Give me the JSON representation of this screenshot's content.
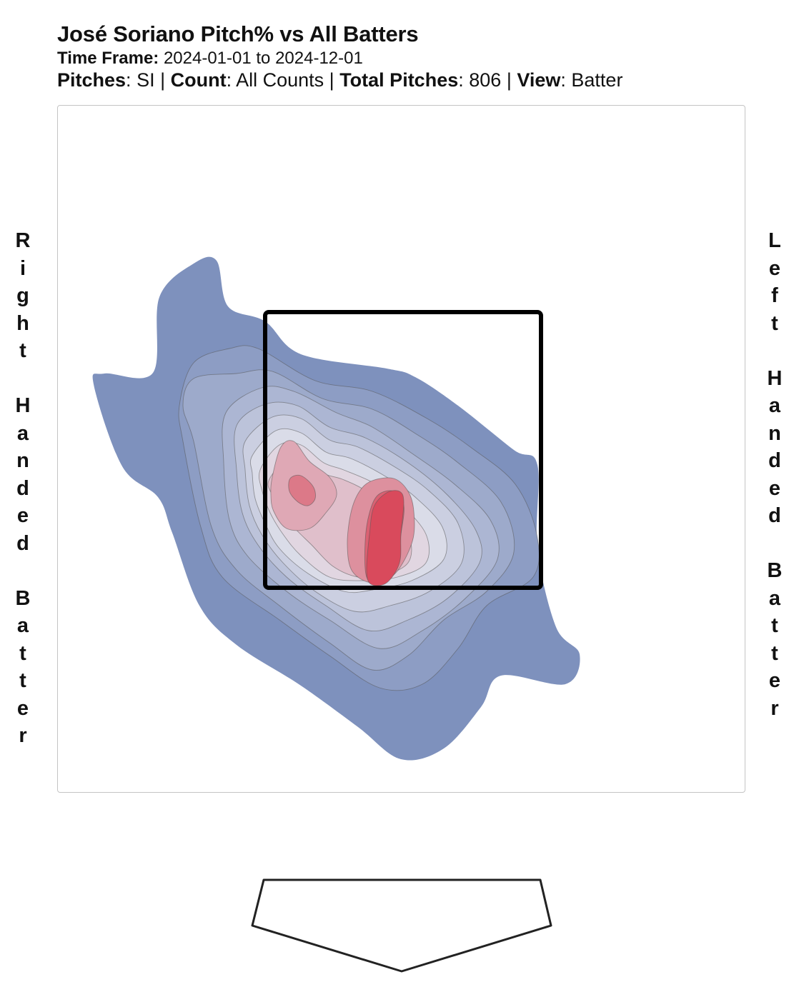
{
  "title": "José Soriano Pitch% vs All Batters",
  "time_frame": {
    "label": "Time Frame:",
    "value": "2024-01-01 to 2024-12-01"
  },
  "filters": {
    "pitches_label": "Pitches",
    "pitches_value": "SI",
    "count_label": "Count",
    "count_value": "All Counts",
    "total_label": "Total Pitches",
    "total_value": "806",
    "view_label": "View",
    "view_value": "Batter"
  },
  "side_labels": {
    "left": "Right Handed Batter",
    "right": "Left Handed Batter"
  },
  "chart_data": {
    "type": "heatmap",
    "title": "José Soriano Pitch% vs All Batters",
    "pitch_type": "SI",
    "count": "All Counts",
    "total_pitches": 806,
    "view": "Batter",
    "strike_zone": true,
    "home_plate": true,
    "contour_levels": 11,
    "color_low": "#7e91bd",
    "color_high": "#d94a5c",
    "density_peaks": [
      {
        "location": "upper-left of zone",
        "relative_density": 0.92
      },
      {
        "location": "lower-middle of zone",
        "relative_density": 1.0
      }
    ]
  }
}
